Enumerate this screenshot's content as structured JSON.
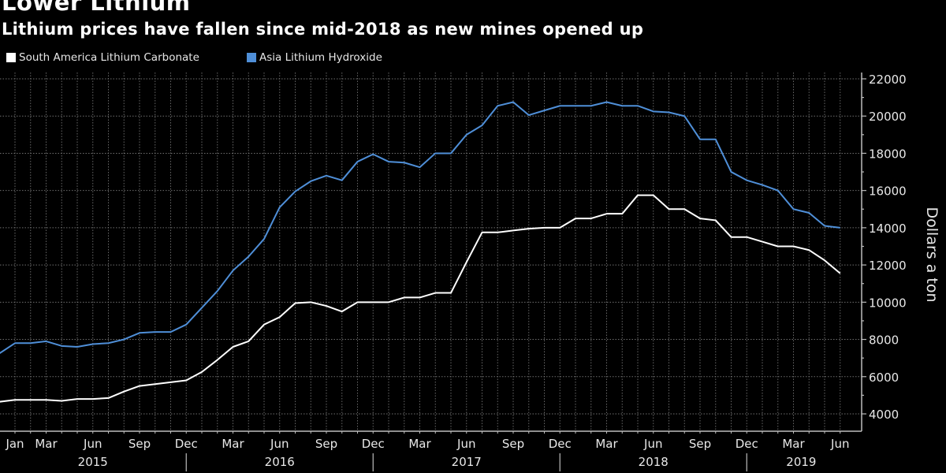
{
  "title": "Lower Lithium",
  "subtitle": "Lithium prices have fallen since mid-2018 as new mines opened up",
  "colors": {
    "background": "#000000",
    "south_america": "#ffffff",
    "asia": "#4f8fd8",
    "grid": "#8a8a8a",
    "axis": "#bdbdbd"
  },
  "chart_data": {
    "type": "line",
    "title": "Lower Lithium",
    "subtitle": "Lithium prices have fallen since mid-2018 as new mines opened up",
    "xlabel": "",
    "ylabel": "Dollars a ton",
    "ylim": [
      4000,
      22000
    ],
    "yticks": [
      "22000",
      "20000",
      "18000",
      "16000",
      "14000",
      "12000",
      "10000",
      "8000",
      "6000",
      "4000"
    ],
    "ytick_values": [
      22000,
      20000,
      18000,
      16000,
      14000,
      12000,
      10000,
      8000,
      6000,
      4000
    ],
    "grid": true,
    "legend_position": "top-left",
    "x": [
      "2014-12",
      "2015-01",
      "2015-02",
      "2015-03",
      "2015-04",
      "2015-05",
      "2015-06",
      "2015-07",
      "2015-08",
      "2015-09",
      "2015-10",
      "2015-11",
      "2015-12",
      "2016-01",
      "2016-02",
      "2016-03",
      "2016-04",
      "2016-05",
      "2016-06",
      "2016-07",
      "2016-08",
      "2016-09",
      "2016-10",
      "2016-11",
      "2016-12",
      "2017-01",
      "2017-02",
      "2017-03",
      "2017-04",
      "2017-05",
      "2017-06",
      "2017-07",
      "2017-08",
      "2017-09",
      "2017-10",
      "2017-11",
      "2017-12",
      "2018-01",
      "2018-02",
      "2018-03",
      "2018-04",
      "2018-05",
      "2018-06",
      "2018-07",
      "2018-08",
      "2018-09",
      "2018-10",
      "2018-11",
      "2018-12",
      "2019-01",
      "2019-02",
      "2019-03",
      "2019-04",
      "2019-05",
      "2019-06"
    ],
    "month_ticks": [
      {
        "label": "Jan",
        "index": 1
      },
      {
        "label": "Mar",
        "index": 3
      },
      {
        "label": "Jun",
        "index": 6
      },
      {
        "label": "Sep",
        "index": 9
      },
      {
        "label": "Dec",
        "index": 12
      },
      {
        "label": "Mar",
        "index": 15
      },
      {
        "label": "Jun",
        "index": 18
      },
      {
        "label": "Sep",
        "index": 21
      },
      {
        "label": "Dec",
        "index": 24
      },
      {
        "label": "Mar",
        "index": 27
      },
      {
        "label": "Jun",
        "index": 30
      },
      {
        "label": "Sep",
        "index": 33
      },
      {
        "label": "Dec",
        "index": 36
      },
      {
        "label": "Mar",
        "index": 39
      },
      {
        "label": "Jun",
        "index": 42
      },
      {
        "label": "Sep",
        "index": 45
      },
      {
        "label": "Dec",
        "index": 48
      },
      {
        "label": "Mar",
        "index": 51
      },
      {
        "label": "Jun",
        "index": 54
      }
    ],
    "year_labels": [
      {
        "label": "2015",
        "index": 6
      },
      {
        "label": "2016",
        "index": 18
      },
      {
        "label": "2017",
        "index": 30
      },
      {
        "label": "2018",
        "index": 42
      },
      {
        "label": "2019",
        "index": 51.5
      }
    ],
    "year_separators": [
      12,
      24,
      36,
      48
    ],
    "series": [
      {
        "name": "South America Lithium Carbonate",
        "color": "#ffffff",
        "values": [
          4650,
          4750,
          4750,
          4750,
          4700,
          4800,
          4800,
          4850,
          5200,
          5500,
          5600,
          5700,
          5800,
          6250,
          6900,
          7600,
          7900,
          8800,
          9200,
          9950,
          10000,
          9800,
          9500,
          10000,
          10000,
          10000,
          10250,
          10250,
          10500,
          10500,
          12150,
          13750,
          13750,
          13850,
          13950,
          14000,
          14000,
          14500,
          14500,
          14750,
          14750,
          15750,
          15750,
          15000,
          15000,
          14500,
          14400,
          13500,
          13500,
          13250,
          13000,
          13000,
          12800,
          12250,
          11550
        ]
      },
      {
        "name": "Asia Lithium Hydroxide",
        "color": "#4f8fd8",
        "values": [
          7250,
          7800,
          7800,
          7900,
          7650,
          7600,
          7750,
          7800,
          8000,
          8350,
          8400,
          8400,
          8800,
          9700,
          10600,
          11700,
          12450,
          13400,
          15100,
          15950,
          16500,
          16800,
          16550,
          17550,
          17950,
          17550,
          17500,
          17250,
          18000,
          18000,
          19000,
          19500,
          20550,
          20750,
          20050,
          20300,
          20550,
          20550,
          20550,
          20750,
          20550,
          20550,
          20250,
          20200,
          20000,
          18750,
          18750,
          17000,
          16550,
          16300,
          16000,
          15000,
          14800,
          14100,
          14000
        ]
      }
    ]
  }
}
